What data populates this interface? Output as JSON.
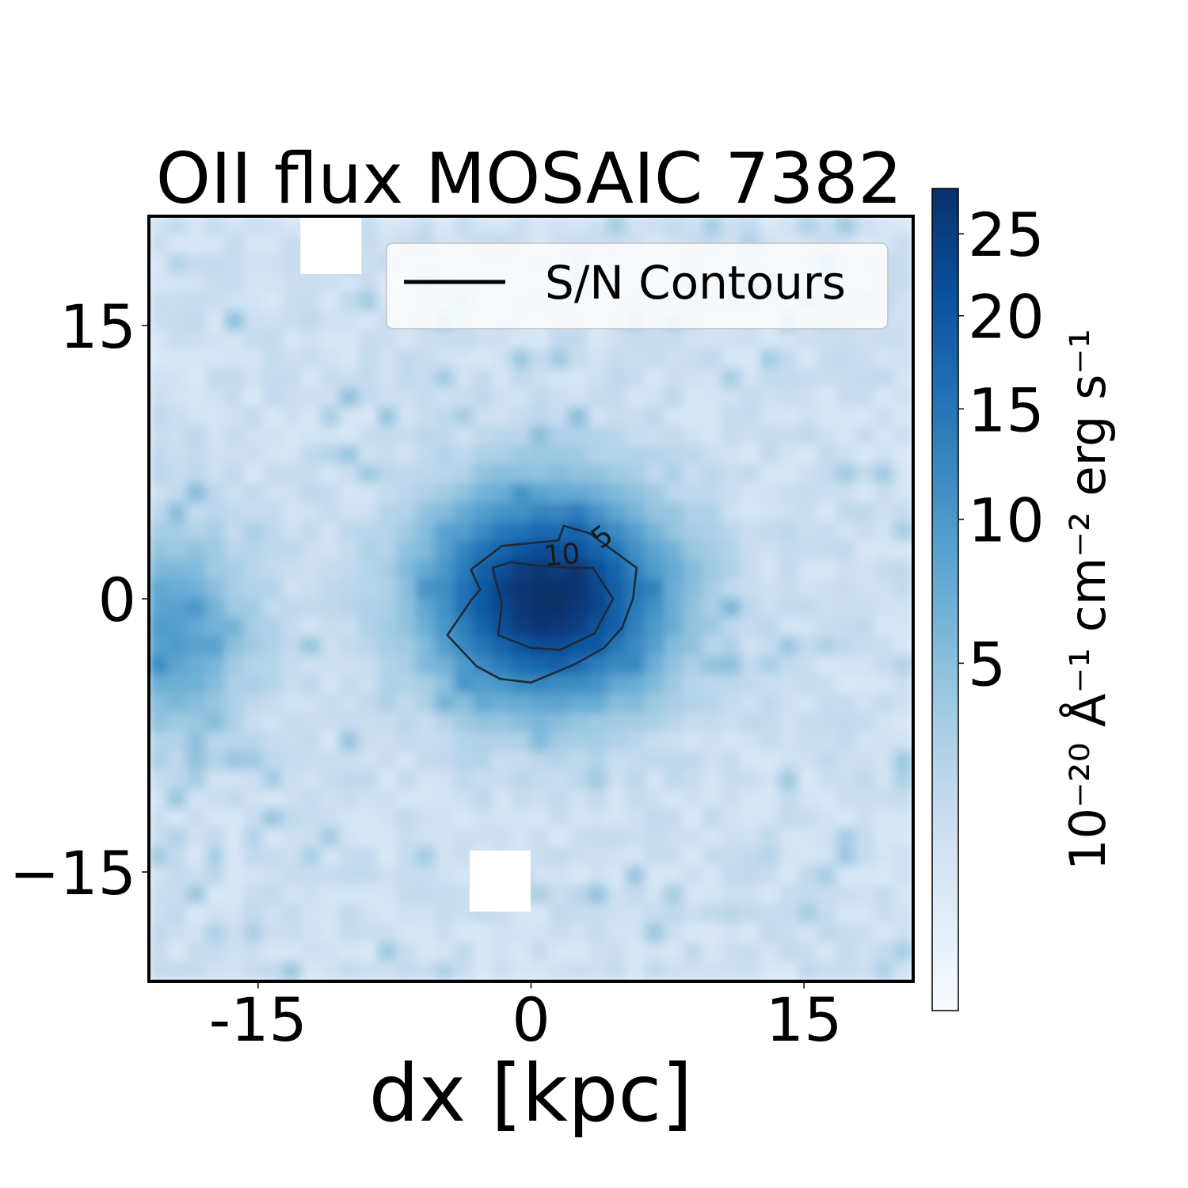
{
  "chart_data": {
    "type": "heatmap",
    "title": "OII flux MOSAIC 7382",
    "xlabel": "dx [kpc]",
    "ylabel": "",
    "xlim": [
      -21,
      21
    ],
    "ylim": [
      -21,
      21
    ],
    "x_ticks": [
      {
        "value": -15,
        "label": "-15"
      },
      {
        "value": 0,
        "label": "0"
      },
      {
        "value": 15,
        "label": "15"
      }
    ],
    "y_ticks": [
      {
        "value": 15,
        "label": "15"
      },
      {
        "value": 0,
        "label": "0"
      },
      {
        "value": -15,
        "label": "−15"
      }
    ],
    "colormap": "Blues",
    "color_scale": "sqrt",
    "colorbar": {
      "label": "10⁻²⁰ Å⁻¹ cm⁻² erg s⁻¹",
      "range": [
        0,
        28
      ],
      "ticks": [
        {
          "value": 5,
          "label": "5"
        },
        {
          "value": 10,
          "label": "10"
        },
        {
          "value": 15,
          "label": "15"
        },
        {
          "value": 20,
          "label": "20"
        },
        {
          "value": 25,
          "label": "25"
        }
      ]
    },
    "legend": {
      "position": "upper-right",
      "entries": [
        {
          "label": "S/N Contours",
          "color": "#000000",
          "style": "line"
        }
      ]
    },
    "contour_labels": [
      {
        "value": 5,
        "label": "5"
      },
      {
        "value": 10,
        "label": "10"
      }
    ],
    "emission_peak": {
      "x": 1,
      "y": 0,
      "value": 28
    },
    "secondary_emission": {
      "x": -20,
      "y": -2,
      "value": 8
    },
    "masked_pixels": [
      {
        "x": -11,
        "y": 19.5
      },
      {
        "x": -1.7,
        "y": -15.5
      }
    ],
    "contours": [
      {
        "level": 5,
        "points": [
          [
            -3.3,
            1.6
          ],
          [
            -1.6,
            2.9
          ],
          [
            1.5,
            3.2
          ],
          [
            1.8,
            4.0
          ],
          [
            3.2,
            3.6
          ],
          [
            4.3,
            2.8
          ],
          [
            5.8,
            1.7
          ],
          [
            5.6,
            0.0
          ],
          [
            5.0,
            -1.6
          ],
          [
            4.0,
            -2.7
          ],
          [
            2.4,
            -3.6
          ],
          [
            0.0,
            -4.6
          ],
          [
            -1.7,
            -4.4
          ],
          [
            -3.0,
            -3.7
          ],
          [
            -4.6,
            -2.0
          ],
          [
            -3.3,
            -0.1
          ],
          [
            -2.8,
            0.5
          ]
        ]
      },
      {
        "level": 10,
        "points": [
          [
            -2.1,
            1.7
          ],
          [
            -1.1,
            2.0
          ],
          [
            0.5,
            1.8
          ],
          [
            2.1,
            1.7
          ],
          [
            3.4,
            1.7
          ],
          [
            4.5,
            0.0
          ],
          [
            3.5,
            -1.9
          ],
          [
            1.6,
            -2.8
          ],
          [
            0.0,
            -2.7
          ],
          [
            -1.8,
            -2.0
          ],
          [
            -1.6,
            -0.2
          ],
          [
            -2.0,
            1.2
          ]
        ]
      }
    ]
  }
}
